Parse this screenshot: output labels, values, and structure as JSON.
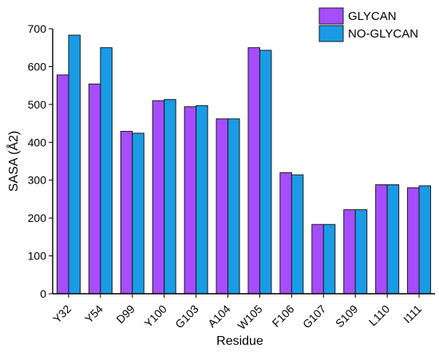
{
  "chart_data": {
    "type": "bar",
    "title": "",
    "xlabel": "Residue",
    "ylabel": "SASA (Å2)",
    "ylim": [
      0,
      700
    ],
    "yticks": [
      0,
      100,
      200,
      300,
      400,
      500,
      600,
      700
    ],
    "categories": [
      "Y32",
      "Y54",
      "D99",
      "Y100",
      "G103",
      "A104",
      "W105",
      "F106",
      "G107",
      "S109",
      "L110",
      "I111"
    ],
    "series": [
      {
        "name": "GLYCAN",
        "color": "#a64dff",
        "values": [
          578,
          554,
          429,
          510,
          494,
          462,
          650,
          320,
          183,
          222,
          288,
          280
        ]
      },
      {
        "name": "NO-GLYCAN",
        "color": "#1a9be6",
        "values": [
          683,
          650,
          424,
          513,
          497,
          462,
          643,
          314,
          183,
          222,
          288,
          285
        ]
      }
    ],
    "legend": "top-right",
    "grid": false
  }
}
